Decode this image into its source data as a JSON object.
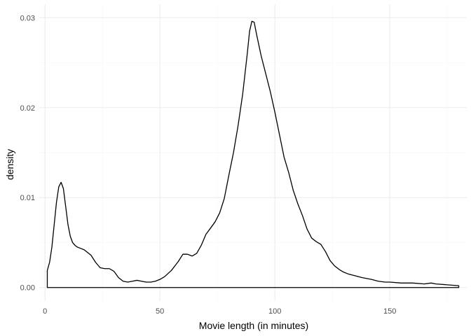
{
  "chart_data": {
    "type": "area",
    "title": "",
    "xlabel": "Movie length (in minutes)",
    "ylabel": "density",
    "xlim": [
      -2.5,
      183.5
    ],
    "ylim": [
      -0.0015,
      0.0315
    ],
    "x_ticks": [
      0,
      50,
      100,
      150
    ],
    "x_tick_labels": [
      "0",
      "50",
      "100",
      "150"
    ],
    "y_ticks": [
      0.0,
      0.01,
      0.02,
      0.03
    ],
    "y_tick_labels": [
      "0.00",
      "0.01",
      "0.02",
      "0.03"
    ],
    "grid": true,
    "line_color": "#000000",
    "series": [
      {
        "x": [
          1,
          2,
          3,
          4,
          5,
          6,
          7,
          8,
          9,
          10,
          11,
          12,
          13,
          14,
          15,
          17,
          20,
          22,
          24,
          26,
          28,
          30,
          32,
          34,
          36,
          38,
          40,
          42,
          44,
          46,
          48,
          50,
          52,
          55,
          58,
          60,
          62,
          64,
          66,
          68,
          70,
          72,
          74,
          76,
          78,
          80,
          82,
          84,
          86,
          88,
          89,
          90,
          91,
          92,
          93,
          94,
          96,
          98,
          100,
          102,
          104,
          106,
          108,
          110,
          112,
          114,
          116,
          118,
          120,
          122,
          124,
          126,
          128,
          130,
          132,
          135,
          138,
          140,
          142,
          145,
          148,
          150,
          155,
          160,
          165,
          168,
          170,
          175,
          180
        ],
        "y": [
          0.0019,
          0.0028,
          0.0045,
          0.007,
          0.0095,
          0.0112,
          0.0117,
          0.011,
          0.009,
          0.007,
          0.0057,
          0.005,
          0.0047,
          0.0045,
          0.0044,
          0.0042,
          0.0036,
          0.0028,
          0.0022,
          0.0021,
          0.0021,
          0.0018,
          0.0011,
          0.0007,
          0.0006,
          0.0007,
          0.0008,
          0.0007,
          0.0006,
          0.0006,
          0.0007,
          0.0009,
          0.0012,
          0.0019,
          0.0029,
          0.0037,
          0.0037,
          0.0035,
          0.0038,
          0.0047,
          0.0059,
          0.0066,
          0.0073,
          0.0083,
          0.0099,
          0.0125,
          0.015,
          0.018,
          0.0215,
          0.026,
          0.0285,
          0.0296,
          0.0295,
          0.0282,
          0.027,
          0.0258,
          0.0238,
          0.0218,
          0.0195,
          0.017,
          0.0145,
          0.0128,
          0.0108,
          0.0093,
          0.008,
          0.0065,
          0.0055,
          0.0051,
          0.0048,
          0.004,
          0.003,
          0.0024,
          0.002,
          0.0017,
          0.0015,
          0.0013,
          0.0011,
          0.001,
          0.0009,
          0.0007,
          0.0006,
          0.0006,
          0.0005,
          0.0005,
          0.0004,
          0.0005,
          0.0004,
          0.0003,
          0.0002
        ]
      }
    ]
  }
}
